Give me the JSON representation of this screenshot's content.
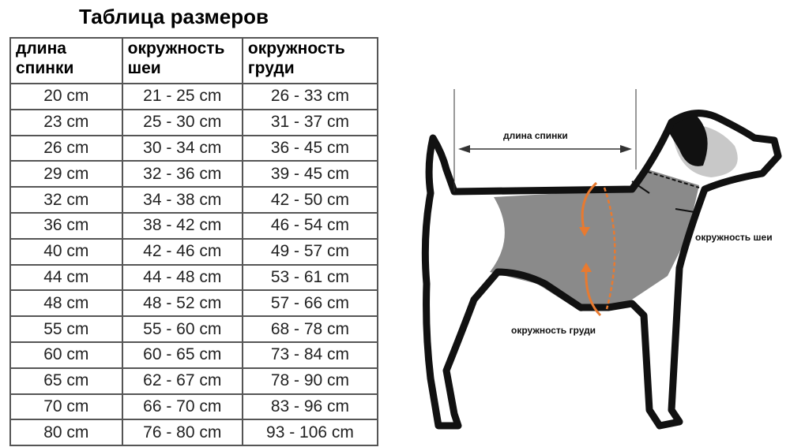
{
  "title": "Таблица размеров",
  "table": {
    "headers": [
      "длина спинки",
      "окружность шеи",
      "окружность груди"
    ],
    "rows": [
      [
        "20 cm",
        "21 - 25 cm",
        "26 - 33 cm"
      ],
      [
        "23 cm",
        "25 - 30 cm",
        "31 - 37 cm"
      ],
      [
        "26 cm",
        "30 - 34 cm",
        "36 - 45 cm"
      ],
      [
        "29 cm",
        "32 - 36 cm",
        "39 - 45 cm"
      ],
      [
        "32 cm",
        "34 - 38 cm",
        "42 - 50 cm"
      ],
      [
        "36 cm",
        "38 - 42 cm",
        "46 - 54 cm"
      ],
      [
        "40 cm",
        "42 - 46 cm",
        "49 - 57 cm"
      ],
      [
        "44 cm",
        "44 - 48 cm",
        "53 - 61 cm"
      ],
      [
        "48 cm",
        "48 - 52 cm",
        "57 - 66 cm"
      ],
      [
        "55 cm",
        "55 - 60 cm",
        "68 - 78 cm"
      ],
      [
        "60 cm",
        "60 - 65 cm",
        "73 - 84 cm"
      ],
      [
        "65 cm",
        "62 - 67 cm",
        "78 - 90 cm"
      ],
      [
        "70 cm",
        "66 - 70 cm",
        "83 - 96 cm"
      ],
      [
        "80 cm",
        "76 - 80 cm",
        "93 - 106 cm"
      ]
    ]
  },
  "diagram": {
    "back_length_label": "длина спинки",
    "neck_label": "окружность шеи",
    "chest_label": "окружность груди",
    "colors": {
      "outline": "#111111",
      "garment": "#8a8a8a",
      "arrow_accent": "#e87a30",
      "head_patch": "#c8c8c8"
    }
  }
}
